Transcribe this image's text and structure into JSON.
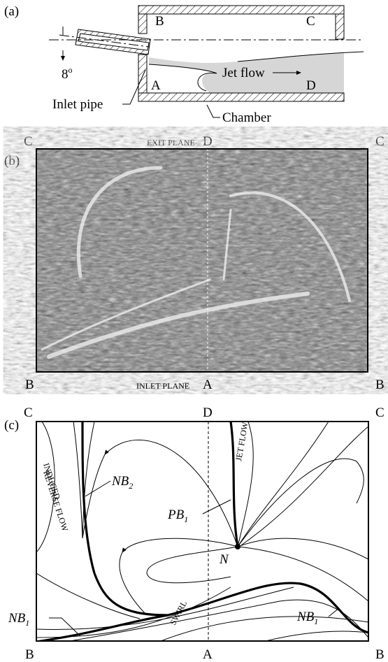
{
  "panel_a": {
    "label": "(a)",
    "corners": [
      "B",
      "C",
      "A",
      "D"
    ],
    "angle": {
      "text": "8",
      "sup": "o"
    },
    "jet_flow": "Jet flow",
    "inlet_pipe": "Inlet pipe",
    "chamber": "Chamber"
  },
  "panel_b": {
    "label": "(b)",
    "top": [
      "C",
      "D",
      "C"
    ],
    "exit_plane": "EXIT PLANE",
    "bottom": [
      "B",
      "A",
      "B"
    ],
    "inlet_plane": "INLET PLANE"
  },
  "panel_c": {
    "label": "(c)",
    "top": [
      "C",
      "D",
      "C"
    ],
    "bottom": [
      "B",
      "A",
      "B"
    ],
    "induced_reverse_flow": [
      "INDUCED",
      "REVERSE FLOW"
    ],
    "jet_flow": "JET FLOW",
    "pb1": {
      "text": "PB",
      "sub": "1"
    },
    "nb2": {
      "text": "NB",
      "sub": "2"
    },
    "n": "N",
    "nb1_left": {
      "text": "NB",
      "sub": "1"
    },
    "swirl": "SWIRL",
    "nb1_right": {
      "text": "NB",
      "sub": "1"
    }
  }
}
